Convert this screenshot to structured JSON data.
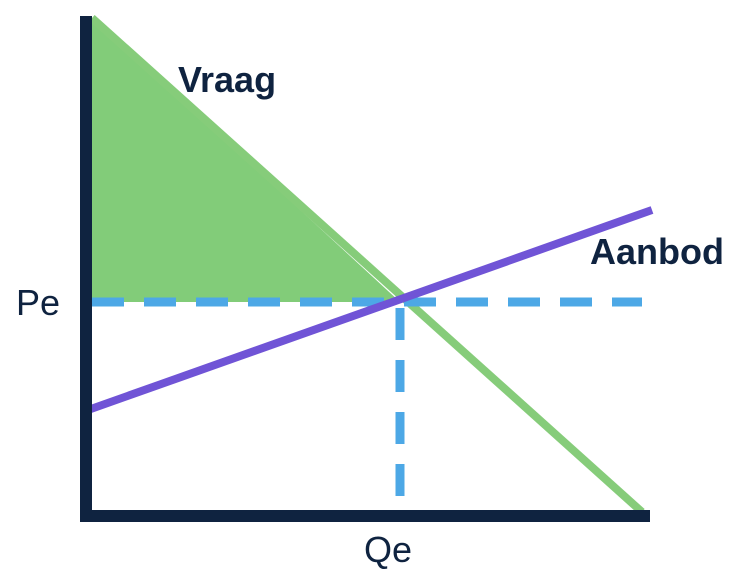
{
  "diagram": {
    "demand_label": "Vraag",
    "supply_label": "Aanbod",
    "price_label": "Pe",
    "quantity_label": "Qe"
  },
  "colors": {
    "axis": "#0f2340",
    "demand_line": "#86cc7a",
    "consumer_surplus": "#82cc79",
    "supply_line": "#7054d6",
    "equilibrium_dash": "#4da8e6",
    "label_text": "#0f2340"
  }
}
